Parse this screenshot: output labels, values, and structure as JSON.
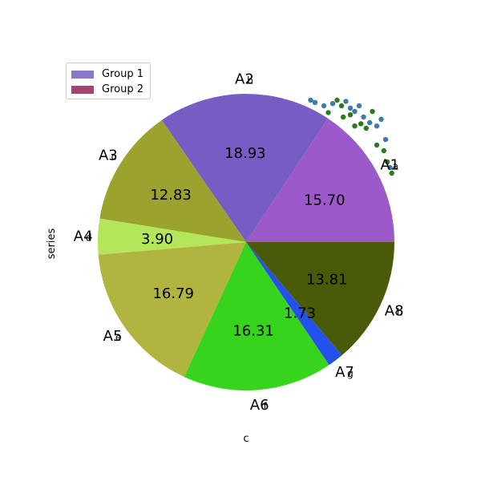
{
  "chart_data": {
    "type": "pie",
    "categories": [
      "A1",
      "A2",
      "A3",
      "A4",
      "A5",
      "A6",
      "A7",
      "A8"
    ],
    "inner_labels": [
      "a",
      "b",
      "c",
      "d",
      "e",
      "f",
      "g",
      "h"
    ],
    "values": [
      15.7,
      18.93,
      12.83,
      3.9,
      16.79,
      16.31,
      1.73,
      13.81
    ],
    "value_labels": [
      "15.70",
      "18.93",
      "12.83",
      "3.90",
      "16.79",
      "16.31",
      "1.73",
      "13.81"
    ],
    "colors": [
      "#9c59c9",
      "#775cc4",
      "#9ba22e",
      "#b3e65a",
      "#b1b540",
      "#36d41d",
      "#2450ec",
      "#495a09"
    ],
    "xlabel": "c",
    "ylabel": "series",
    "legend": {
      "placement": "upper-left",
      "entries": [
        {
          "label": "Group 1",
          "color": "#8b77c8"
        },
        {
          "label": "Group 2",
          "color": "#a04470"
        }
      ]
    },
    "scatter_overlay": {
      "description": "",
      "series": [
        {
          "color": "#3d7aa8",
          "points": [
            [
              0.05,
              0.95
            ],
            [
              0.1,
              0.93
            ],
            [
              0.2,
              0.9
            ],
            [
              0.3,
              0.92
            ],
            [
              0.45,
              0.94
            ],
            [
              0.5,
              0.88
            ],
            [
              0.55,
              0.85
            ],
            [
              0.6,
              0.9
            ],
            [
              0.65,
              0.8
            ],
            [
              0.72,
              0.75
            ],
            [
              0.8,
              0.72
            ],
            [
              0.85,
              0.78
            ],
            [
              0.9,
              0.6
            ],
            [
              0.95,
              0.35
            ]
          ]
        },
        {
          "color": "#2a7a1e",
          "points": [
            [
              0.25,
              0.84
            ],
            [
              0.35,
              0.95
            ],
            [
              0.4,
              0.9
            ],
            [
              0.42,
              0.8
            ],
            [
              0.5,
              0.82
            ],
            [
              0.55,
              0.72
            ],
            [
              0.62,
              0.74
            ],
            [
              0.68,
              0.7
            ],
            [
              0.75,
              0.85
            ],
            [
              0.8,
              0.55
            ],
            [
              0.88,
              0.5
            ],
            [
              0.92,
              0.4
            ],
            [
              0.97,
              0.3
            ]
          ]
        }
      ]
    }
  }
}
